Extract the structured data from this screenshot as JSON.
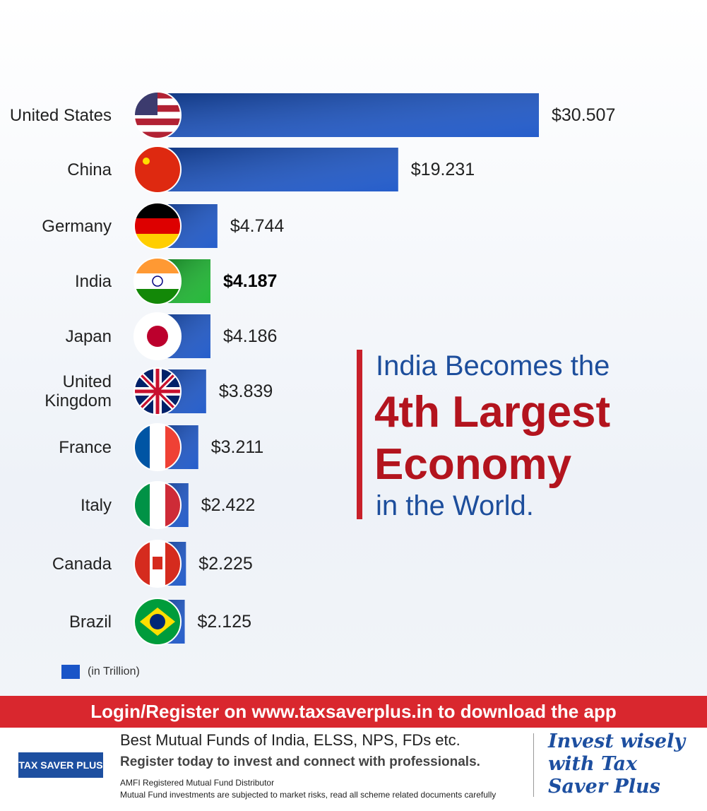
{
  "chart_data": {
    "type": "bar",
    "orientation": "horizontal",
    "categories": [
      "United States",
      "China",
      "Germany",
      "India",
      "Japan",
      "United Kingdom",
      "France",
      "Italy",
      "Canada",
      "Brazil"
    ],
    "values": [
      30.507,
      19.231,
      4.744,
      4.187,
      4.186,
      3.839,
      3.211,
      2.422,
      2.225,
      2.125
    ],
    "value_labels": [
      "$30.507",
      "$19.231",
      "$4.744",
      "$4.187",
      "$4.186",
      "$3.839",
      "$3.211",
      "$2.422",
      "$2.225",
      "$2.125"
    ],
    "colors": [
      "#1a55c8",
      "#1a55c8",
      "#1a55c8",
      "#19b52e",
      "#1a55c8",
      "#1a55c8",
      "#1a55c8",
      "#1a55c8",
      "#1a55c8",
      "#1a55c8"
    ],
    "legend": "(in Trillion)",
    "headline": [
      "India Becomes the",
      "4th Largest",
      "Economy",
      "in the World."
    ]
  },
  "footer": {
    "banner": "Login/Register on www.taxsaverplus.in to download the app",
    "logo": "TAX SAVER PLUS",
    "line1": "Best Mutual Funds of India, ELSS, NPS, FDs etc.",
    "line2": "Register today to invest and connect with professionals.",
    "line3": "AMFI Registered Mutual Fund Distributor",
    "line4": "Mutual Fund investments are subjected to market risks, read all scheme related documents carefully",
    "slogan": [
      "Invest wisely",
      "with Tax",
      "Saver Plus"
    ]
  }
}
